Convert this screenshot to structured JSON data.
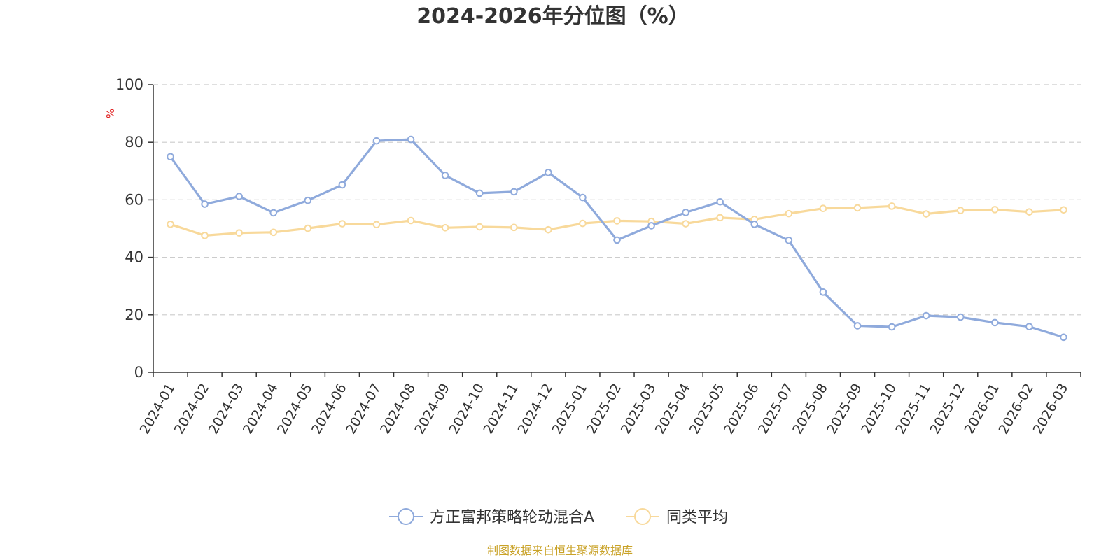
{
  "colors": {
    "series_main": "#8FAADC",
    "series_avg": "#F8D99B",
    "unit": "#E02020",
    "source": "#C9A227",
    "axis": "#333333",
    "grid": "#CCCCCC"
  },
  "chart_data": {
    "type": "line",
    "title": "2024-2026年分位图（%）",
    "ylabel": "%",
    "xlabel": "",
    "ylim": [
      0,
      100
    ],
    "yticks": [
      0,
      20,
      40,
      60,
      80,
      100
    ],
    "grid": true,
    "legend_position": "bottom-center",
    "categories": [
      "2024-01",
      "2024-02",
      "2024-03",
      "2024-04",
      "2024-05",
      "2024-06",
      "2024-07",
      "2024-08",
      "2024-09",
      "2024-10",
      "2024-11",
      "2024-12",
      "2025-01",
      "2025-02",
      "2025-03",
      "2025-04",
      "2025-05",
      "2025-06",
      "2025-07",
      "2025-08",
      "2025-09",
      "2025-10",
      "2025-11",
      "2025-12",
      "2026-01",
      "2026-02",
      "2026-03"
    ],
    "series": [
      {
        "name": "方正富邦策略轮动混合A",
        "values": [
          75,
          58.5,
          61.2,
          55.5,
          59.8,
          65.2,
          80.5,
          81,
          68.5,
          62.3,
          62.8,
          69.5,
          60.8,
          46,
          51,
          55.6,
          59.3,
          51.5,
          45.9,
          27.9,
          16.2,
          15.8,
          19.7,
          19.2,
          17.3,
          15.9,
          12.2
        ]
      },
      {
        "name": "同类平均",
        "values": [
          51.5,
          47.6,
          48.5,
          48.7,
          50.1,
          51.7,
          51.4,
          52.8,
          50.3,
          50.6,
          50.4,
          49.6,
          51.8,
          52.7,
          52.5,
          51.7,
          53.8,
          53.2,
          55.2,
          57,
          57.2,
          57.8,
          55.1,
          56.3,
          56.6,
          55.8,
          56.5
        ]
      }
    ]
  },
  "source_text": "制图数据来自恒生聚源数据库"
}
